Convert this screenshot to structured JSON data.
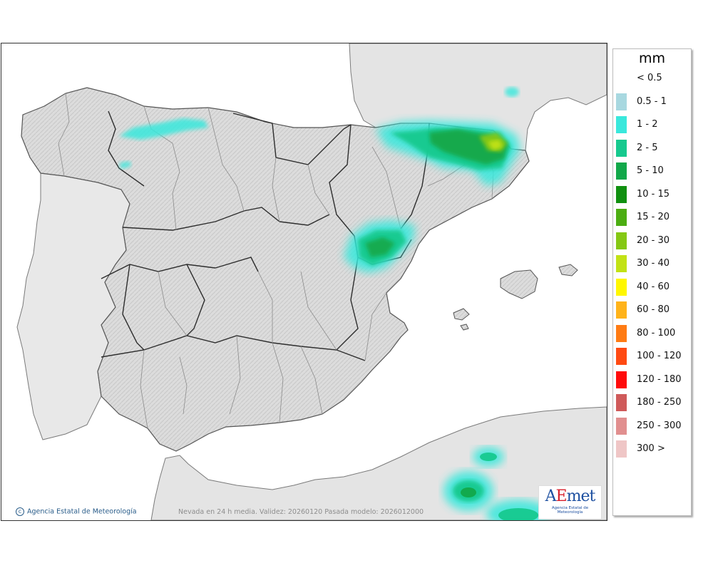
{
  "legend": {
    "unit": "mm",
    "items": [
      {
        "label": "< 0.5",
        "color": "#ffffff"
      },
      {
        "label": "0.5 - 1",
        "color": "#a8d8e0"
      },
      {
        "label": "1 - 2",
        "color": "#39e8dc"
      },
      {
        "label": "2 - 5",
        "color": "#16c98e"
      },
      {
        "label": "5 - 10",
        "color": "#12a84a"
      },
      {
        "label": "10 - 15",
        "color": "#109010"
      },
      {
        "label": "15 - 20",
        "color": "#4cad12"
      },
      {
        "label": "20 - 30",
        "color": "#85c814"
      },
      {
        "label": "30 - 40",
        "color": "#c2e215"
      },
      {
        "label": "40 - 60",
        "color": "#fff700"
      },
      {
        "label": "60 - 80",
        "color": "#ffb31a"
      },
      {
        "label": "80 - 100",
        "color": "#ff7b13"
      },
      {
        "label": "100 - 120",
        "color": "#ff4a12"
      },
      {
        "label": "120 - 180",
        "color": "#ff0b0b"
      },
      {
        "label": "180 - 250",
        "color": "#cf5a5a"
      },
      {
        "label": "250 - 300",
        "color": "#e18f8f"
      },
      {
        "label": "300 >",
        "color": "#efc6c6"
      }
    ]
  },
  "map": {
    "copyright": "Agencia Estatal de Meteorología",
    "caption": "Nevada en 24 h media. Validez: 20260120 Pasada modelo: 2026012000",
    "logo": {
      "brand_a": "A",
      "brand_e": "E",
      "brand_rest": "met",
      "subtitle": "Agencia Estatal de Meteorología"
    }
  }
}
